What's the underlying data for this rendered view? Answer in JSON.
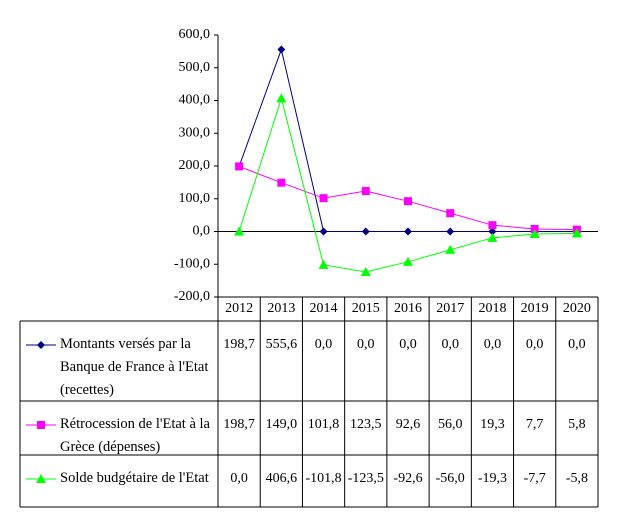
{
  "chart_data": {
    "type": "line",
    "categories": [
      "2012",
      "2013",
      "2014",
      "2015",
      "2016",
      "2017",
      "2018",
      "2019",
      "2020"
    ],
    "series": [
      {
        "name": "Montants versés par la Banque de France à l'Etat (recettes)",
        "color": "#000080",
        "marker": "diamond",
        "values": [
          198.7,
          555.6,
          0.0,
          0.0,
          0.0,
          0.0,
          0.0,
          0.0,
          0.0
        ],
        "value_labels": [
          "198,7",
          "555,6",
          "0,0",
          "0,0",
          "0,0",
          "0,0",
          "0,0",
          "0,0",
          "0,0"
        ]
      },
      {
        "name": "Rétrocession de l'Etat à la Grèce (dépenses)",
        "color": "#ff00ff",
        "marker": "square",
        "values": [
          198.7,
          149.0,
          101.8,
          123.5,
          92.6,
          56.0,
          19.3,
          7.7,
          5.8
        ],
        "value_labels": [
          "198,7",
          "149,0",
          "101,8",
          "123,5",
          "92,6",
          "56,0",
          "19,3",
          "7,7",
          "5,8"
        ]
      },
      {
        "name": "Solde budgétaire de l'Etat",
        "color": "#00ff00",
        "marker": "triangle",
        "values": [
          0.0,
          406.6,
          -101.8,
          -123.5,
          -92.6,
          -56.0,
          -19.3,
          -7.7,
          -5.8
        ],
        "value_labels": [
          "0,0",
          "406,6",
          "-101,8",
          "-123,5",
          "-92,6",
          "-56,0",
          "-19,3",
          "-7,7",
          "-5,8"
        ]
      }
    ],
    "ylim": [
      -200,
      600
    ],
    "yticks": [
      {
        "value": -200,
        "label": "-200,0"
      },
      {
        "value": -100,
        "label": "-100,0"
      },
      {
        "value": 0,
        "label": "0,0"
      },
      {
        "value": 100,
        "label": "100,0"
      },
      {
        "value": 200,
        "label": "200,0"
      },
      {
        "value": 300,
        "label": "300,0"
      },
      {
        "value": 400,
        "label": "400,0"
      },
      {
        "value": 500,
        "label": "500,0"
      },
      {
        "value": 600,
        "label": "600,0"
      }
    ],
    "grid": false
  }
}
